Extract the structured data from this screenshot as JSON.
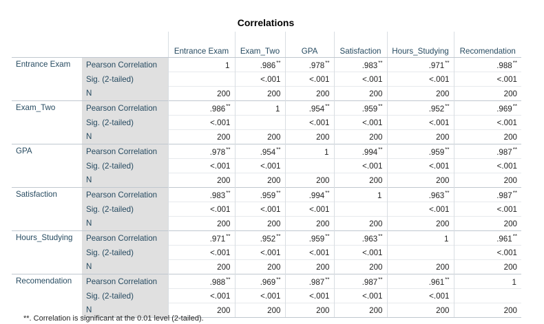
{
  "title": "Correlations",
  "columns": [
    "Entrance Exam",
    "Exam_Two",
    "GPA",
    "Satisfaction",
    "Hours_Studying",
    "Recomendation"
  ],
  "stat_labels": [
    "Pearson Correlation",
    "Sig. (2-tailed)",
    "N"
  ],
  "rows": [
    {
      "label": "Entrance Exam",
      "pearson": [
        {
          "v": "1",
          "s": ""
        },
        {
          "v": ".986",
          "s": "**"
        },
        {
          "v": ".978",
          "s": "**"
        },
        {
          "v": ".983",
          "s": "**"
        },
        {
          "v": ".971",
          "s": "**"
        },
        {
          "v": ".988",
          "s": "**"
        }
      ],
      "sig": [
        "",
        "<.001",
        "<.001",
        "<.001",
        "<.001",
        "<.001"
      ],
      "n": [
        "200",
        "200",
        "200",
        "200",
        "200",
        "200"
      ]
    },
    {
      "label": "Exam_Two",
      "pearson": [
        {
          "v": ".986",
          "s": "**"
        },
        {
          "v": "1",
          "s": ""
        },
        {
          "v": ".954",
          "s": "**"
        },
        {
          "v": ".959",
          "s": "**"
        },
        {
          "v": ".952",
          "s": "**"
        },
        {
          "v": ".969",
          "s": "**"
        }
      ],
      "sig": [
        "<.001",
        "",
        "<.001",
        "<.001",
        "<.001",
        "<.001"
      ],
      "n": [
        "200",
        "200",
        "200",
        "200",
        "200",
        "200"
      ]
    },
    {
      "label": "GPA",
      "pearson": [
        {
          "v": ".978",
          "s": "**"
        },
        {
          "v": ".954",
          "s": "**"
        },
        {
          "v": "1",
          "s": ""
        },
        {
          "v": ".994",
          "s": "**"
        },
        {
          "v": ".959",
          "s": "**"
        },
        {
          "v": ".987",
          "s": "**"
        }
      ],
      "sig": [
        "<.001",
        "<.001",
        "",
        "<.001",
        "<.001",
        "<.001"
      ],
      "n": [
        "200",
        "200",
        "200",
        "200",
        "200",
        "200"
      ]
    },
    {
      "label": "Satisfaction",
      "pearson": [
        {
          "v": ".983",
          "s": "**"
        },
        {
          "v": ".959",
          "s": "**"
        },
        {
          "v": ".994",
          "s": "**"
        },
        {
          "v": "1",
          "s": ""
        },
        {
          "v": ".963",
          "s": "**"
        },
        {
          "v": ".987",
          "s": "**"
        }
      ],
      "sig": [
        "<.001",
        "<.001",
        "<.001",
        "",
        "<.001",
        "<.001"
      ],
      "n": [
        "200",
        "200",
        "200",
        "200",
        "200",
        "200"
      ]
    },
    {
      "label": "Hours_Studying",
      "pearson": [
        {
          "v": ".971",
          "s": "**"
        },
        {
          "v": ".952",
          "s": "**"
        },
        {
          "v": ".959",
          "s": "**"
        },
        {
          "v": ".963",
          "s": "**"
        },
        {
          "v": "1",
          "s": ""
        },
        {
          "v": ".961",
          "s": "**"
        }
      ],
      "sig": [
        "<.001",
        "<.001",
        "<.001",
        "<.001",
        "",
        "<.001"
      ],
      "n": [
        "200",
        "200",
        "200",
        "200",
        "200",
        "200"
      ]
    },
    {
      "label": "Recomendation",
      "pearson": [
        {
          "v": ".988",
          "s": "**"
        },
        {
          "v": ".969",
          "s": "**"
        },
        {
          "v": ".987",
          "s": "**"
        },
        {
          "v": ".987",
          "s": "**"
        },
        {
          "v": ".961",
          "s": "**"
        },
        {
          "v": "1",
          "s": ""
        }
      ],
      "sig": [
        "<.001",
        "<.001",
        "<.001",
        "<.001",
        "<.001",
        ""
      ],
      "n": [
        "200",
        "200",
        "200",
        "200",
        "200",
        "200"
      ]
    }
  ],
  "footnote": "**. Correlation is significant at the 0.01 level (2-tailed)."
}
